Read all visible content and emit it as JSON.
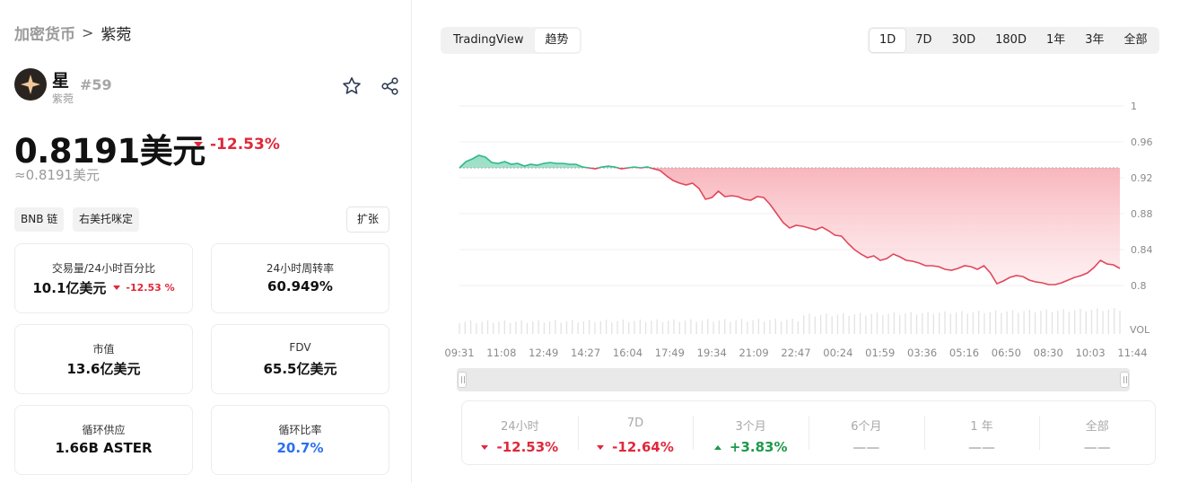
{
  "breadcrumb": {
    "root": "加密货币",
    "separator": ">",
    "current": "紫菀"
  },
  "token": {
    "name": "星",
    "subtitle": "紫菀",
    "rank": "#59",
    "price": "0.8191美元",
    "change": "-12.53%",
    "price_approx": "≈0.8191美元"
  },
  "tags": [
    "BNB 链",
    "右美托咪定"
  ],
  "expand_label": "扩张",
  "metrics": {
    "volume": {
      "label": "交易量/24小时百分比",
      "value": "10.1亿美元",
      "change": "-12.53 %"
    },
    "turnover": {
      "label": "24小时周转率",
      "value": "60.949%"
    },
    "market_cap": {
      "label": "市值",
      "value": "13.6亿美元"
    },
    "fdv": {
      "label": "FDV",
      "value": "65.5亿美元"
    },
    "circulating": {
      "label": "循环供应",
      "value": "1.66B ASTER"
    },
    "circ_ratio": {
      "label": "循环比率",
      "value": "20.7%"
    }
  },
  "view_toggle": {
    "tradingview": "TradingView",
    "trend": "趋势"
  },
  "ranges": [
    "1D",
    "7D",
    "30D",
    "180D",
    "1年",
    "3年",
    "全部"
  ],
  "active_range": "1D",
  "chart_data": {
    "type": "area",
    "x_ticks": [
      "09:31",
      "11:08",
      "12:49",
      "14:27",
      "16:04",
      "17:49",
      "19:34",
      "21:09",
      "22:47",
      "00:24",
      "01:59",
      "03:36",
      "05:16",
      "06:50",
      "08:30",
      "10:03",
      "11:44"
    ],
    "y_ticks": [
      1,
      0.96,
      0.92,
      0.88,
      0.84,
      0.8
    ],
    "ylim": [
      0.76,
      1.03
    ],
    "baseline": 0.931,
    "volume_label": "VOL",
    "values": [
      0.931,
      0.938,
      0.941,
      0.945,
      0.943,
      0.937,
      0.936,
      0.938,
      0.935,
      0.936,
      0.933,
      0.935,
      0.934,
      0.936,
      0.937,
      0.936,
      0.936,
      0.935,
      0.935,
      0.932,
      0.931,
      0.93,
      0.932,
      0.933,
      0.932,
      0.93,
      0.931,
      0.932,
      0.931,
      0.932,
      0.93,
      0.928,
      0.922,
      0.917,
      0.914,
      0.912,
      0.914,
      0.908,
      0.896,
      0.898,
      0.905,
      0.899,
      0.9,
      0.899,
      0.896,
      0.895,
      0.899,
      0.898,
      0.89,
      0.88,
      0.87,
      0.864,
      0.867,
      0.866,
      0.864,
      0.862,
      0.865,
      0.861,
      0.856,
      0.855,
      0.847,
      0.84,
      0.835,
      0.831,
      0.833,
      0.828,
      0.83,
      0.835,
      0.832,
      0.828,
      0.827,
      0.825,
      0.822,
      0.822,
      0.821,
      0.818,
      0.817,
      0.819,
      0.822,
      0.821,
      0.818,
      0.822,
      0.814,
      0.802,
      0.805,
      0.809,
      0.811,
      0.81,
      0.806,
      0.804,
      0.803,
      0.801,
      0.801,
      0.803,
      0.806,
      0.809,
      0.811,
      0.814,
      0.82,
      0.828,
      0.824,
      0.823,
      0.819
    ]
  },
  "stats": [
    {
      "label": "24小时",
      "value": "-12.53%",
      "dir": "down"
    },
    {
      "label": "7D",
      "value": "-12.64%",
      "dir": "down"
    },
    {
      "label": "3个月",
      "value": "+3.83%",
      "dir": "up"
    },
    {
      "label": "6个月",
      "value": "——",
      "dir": "na"
    },
    {
      "label": "1 年",
      "value": "——",
      "dir": "na"
    },
    {
      "label": "全部",
      "value": "——",
      "dir": "na"
    }
  ],
  "colors": {
    "down": "#e0283b",
    "up": "#1e9a4b",
    "accent_blue": "#2b6ff0"
  }
}
